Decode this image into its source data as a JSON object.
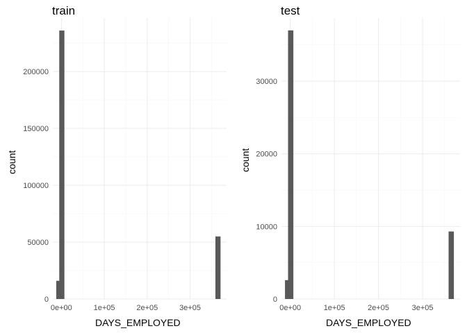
{
  "chart_data": [
    {
      "type": "bar",
      "title": "train",
      "xlabel": "DAYS_EMPLOYED",
      "ylabel": "count",
      "x_ticks": [
        "0e+00",
        "1e+05",
        "2e+05",
        "3e+05"
      ],
      "y_ticks": [
        "0",
        "50000",
        "100000",
        "150000",
        "200000"
      ],
      "xlim": [
        -20000,
        385000
      ],
      "ylim": [
        0,
        247000
      ],
      "bar_width": 12000,
      "grid": true,
      "bins": [
        {
          "x": -6000,
          "count": 16000
        },
        {
          "x": 1000,
          "count": 236000
        },
        {
          "x": 365000,
          "count": 55000
        }
      ]
    },
    {
      "type": "bar",
      "title": "test",
      "xlabel": "DAYS_EMPLOYED",
      "ylabel": "count",
      "x_ticks": [
        "0e+00",
        "1e+05",
        "2e+05",
        "3e+05"
      ],
      "y_ticks": [
        "0",
        "10000",
        "20000",
        "30000"
      ],
      "xlim": [
        -20000,
        385000
      ],
      "ylim": [
        0,
        38700
      ],
      "bar_width": 12000,
      "grid": true,
      "bins": [
        {
          "x": -6000,
          "count": 2600
        },
        {
          "x": 1000,
          "count": 37000
        },
        {
          "x": 365000,
          "count": 9300
        }
      ]
    }
  ]
}
